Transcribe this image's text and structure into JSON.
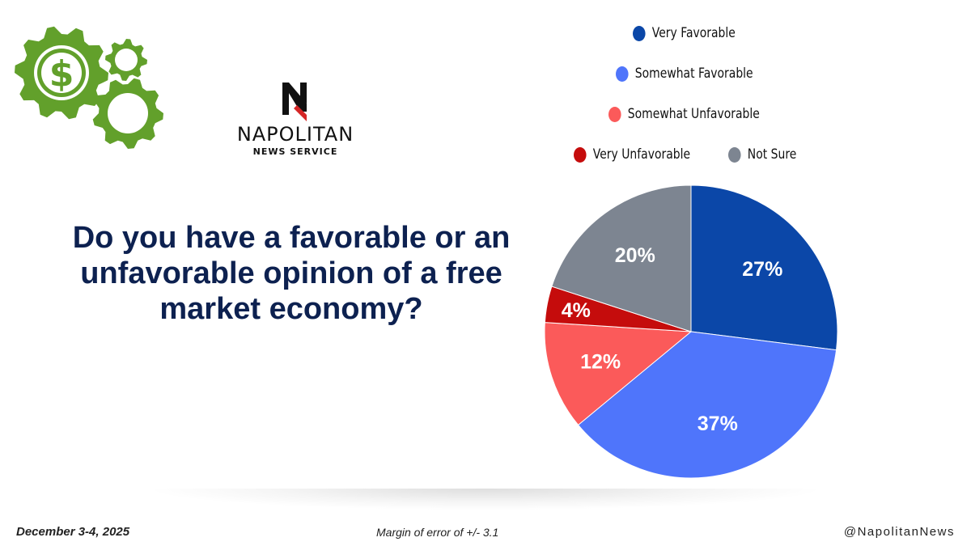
{
  "brand": {
    "name": "NAPOLITAN",
    "subtitle": "NEWS SERVICE",
    "icon": "gears-dollar-icon"
  },
  "question": "Do you have a favorable or an unfavorable opinion of a free market economy?",
  "footer": {
    "date": "December 3-4, 2025",
    "margin_of_error": "Margin of error of +/- 3.1",
    "handle": "@NapolitanNews"
  },
  "colors": {
    "gear_green": "#62a02b",
    "title_navy": "#0d2150"
  },
  "chart_data": {
    "type": "pie",
    "title": "",
    "legend_position": "top-right",
    "slices": [
      {
        "name": "Very Favorable",
        "value": 27,
        "label": "27%",
        "color": "#0b47a8"
      },
      {
        "name": "Somewhat Favorable",
        "value": 37,
        "label": "37%",
        "color": "#4f75fb"
      },
      {
        "name": "Somewhat Unfavorable",
        "value": 12,
        "label": "12%",
        "color": "#fb5a5a"
      },
      {
        "name": "Very Unfavorable",
        "value": 4,
        "label": "4%",
        "color": "#c50c0c"
      },
      {
        "name": "Not Sure",
        "value": 20,
        "label": "20%",
        "color": "#7d8591"
      }
    ]
  }
}
